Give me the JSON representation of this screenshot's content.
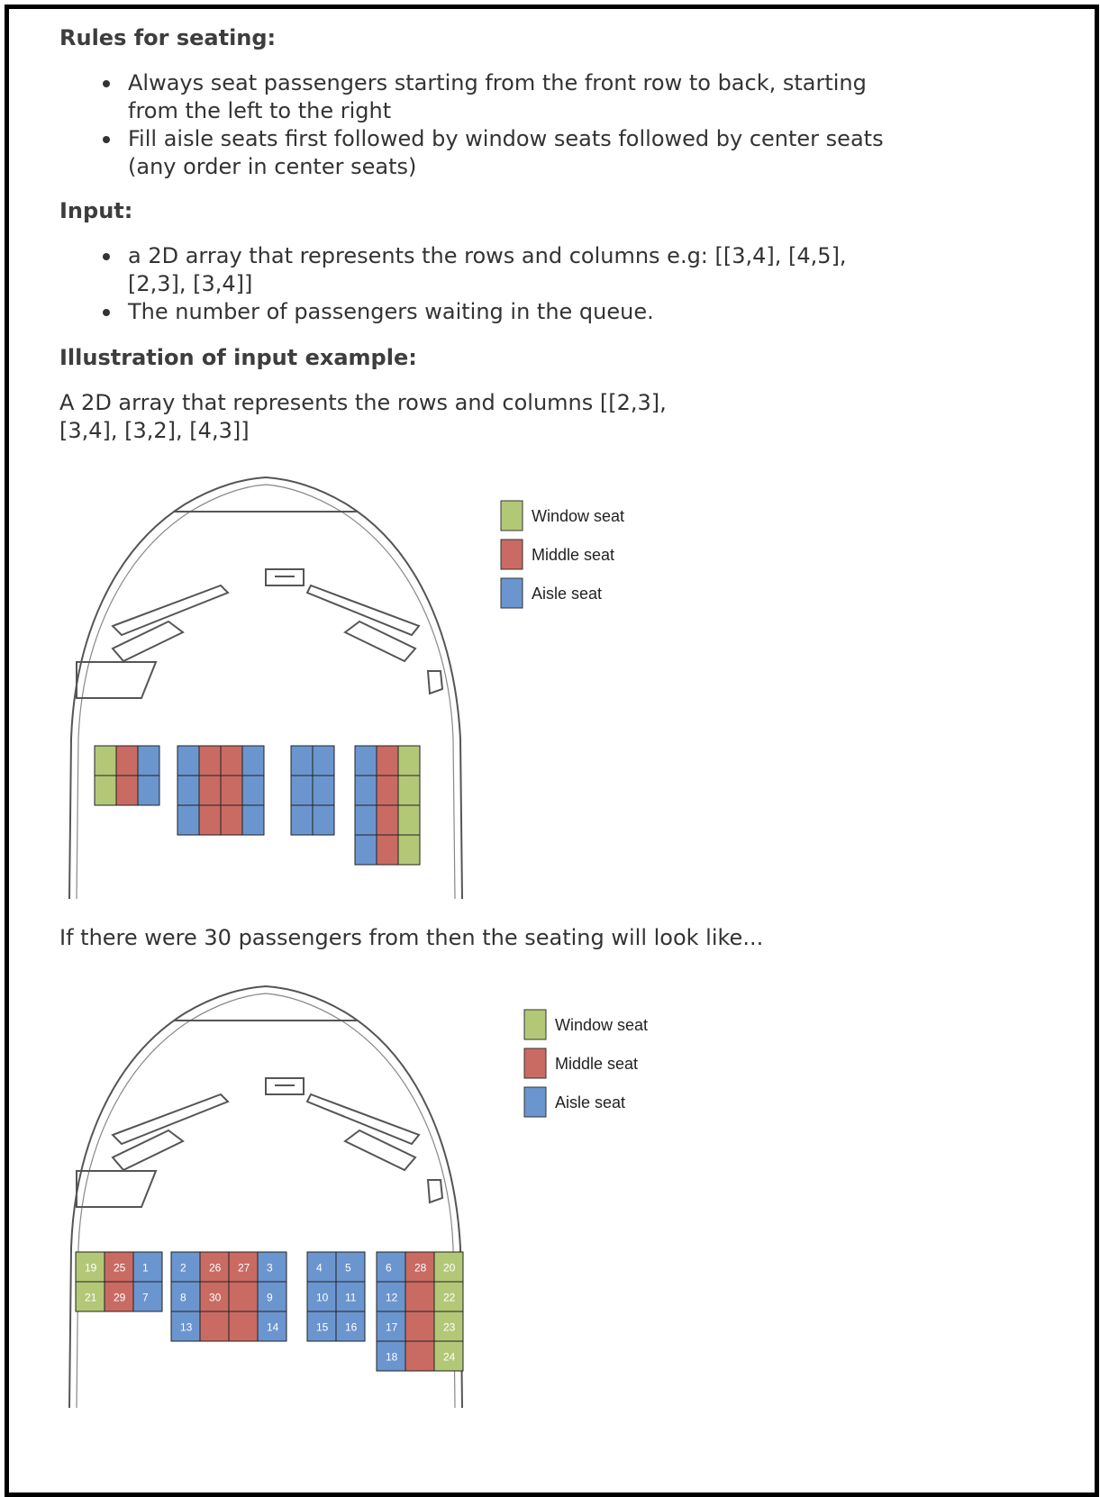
{
  "rules": {
    "heading": "Rules for seating:",
    "items": [
      "Always seat passengers starting from the front row to back, starting from the left to the right",
      "Fill aisle seats first followed by window seats followed by center seats (any order in center seats)"
    ]
  },
  "input": {
    "heading": "Input:",
    "items": [
      "a 2D array that represents the rows and columns e.g: [[3,4], [4,5], [2,3], [3,4]]",
      "The number of passengers waiting in the queue."
    ]
  },
  "illustration": {
    "heading": "Illustration of input example:",
    "description": "A 2D array that represents the rows and columns [[2,3], [3,4], [3,2], [4,3]]"
  },
  "result_caption": "If there were 30 passengers from then the seating will look like...",
  "legend": [
    {
      "label": "Window seat",
      "color": "#b3c877"
    },
    {
      "label": "Middle seat",
      "color": "#c96b63"
    },
    {
      "label": "Aisle seat",
      "color": "#6b95cf"
    }
  ],
  "seat_blocks": [
    {
      "cols": 3,
      "rows": 2,
      "types": [
        [
          "W",
          "M",
          "A"
        ],
        [
          "W",
          "M",
          "A"
        ]
      ],
      "numbers": [
        [
          "19",
          "25",
          "1"
        ],
        [
          "21",
          "29",
          "7"
        ]
      ]
    },
    {
      "cols": 4,
      "rows": 3,
      "types": [
        [
          "A",
          "M",
          "M",
          "A"
        ],
        [
          "A",
          "M",
          "M",
          "A"
        ],
        [
          "A",
          "M",
          "M",
          "A"
        ]
      ],
      "numbers": [
        [
          "2",
          "26",
          "27",
          "3"
        ],
        [
          "8",
          "30",
          "",
          "9"
        ],
        [
          "13",
          "",
          "",
          "14"
        ]
      ]
    },
    {
      "cols": 2,
      "rows": 3,
      "types": [
        [
          "A",
          "A"
        ],
        [
          "A",
          "A"
        ],
        [
          "A",
          "A"
        ]
      ],
      "numbers": [
        [
          "4",
          "5"
        ],
        [
          "10",
          "11"
        ],
        [
          "15",
          "16"
        ]
      ]
    },
    {
      "cols": 3,
      "rows": 4,
      "types": [
        [
          "A",
          "M",
          "W"
        ],
        [
          "A",
          "M",
          "W"
        ],
        [
          "A",
          "M",
          "W"
        ],
        [
          "A",
          "M",
          "W"
        ]
      ],
      "numbers": [
        [
          "6",
          "28",
          "20"
        ],
        [
          "12",
          "",
          "22"
        ],
        [
          "17",
          "",
          "23"
        ],
        [
          "18",
          "",
          "24"
        ]
      ]
    }
  ]
}
